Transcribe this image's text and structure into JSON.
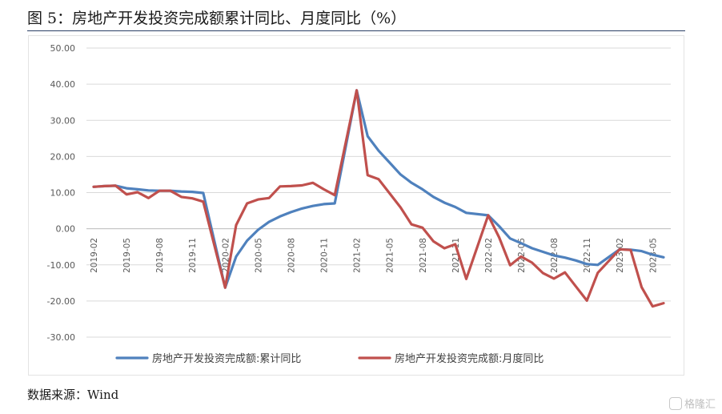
{
  "figure": {
    "title": "图 5：房地产开发投资完成额累计同比、月度同比（%）",
    "source": "数据来源：Wind"
  },
  "watermark": {
    "text": "格隆汇",
    "icon": "gelonghui-logo-icon"
  },
  "chart_data": {
    "type": "line",
    "x": [
      "2019-02",
      "2019-03",
      "2019-04",
      "2019-05",
      "2019-06",
      "2019-07",
      "2019-08",
      "2019-09",
      "2019-10",
      "2019-11",
      "2019-12",
      "2020-01",
      "2020-02",
      "2020-03",
      "2020-04",
      "2020-05",
      "2020-06",
      "2020-07",
      "2020-08",
      "2020-09",
      "2020-10",
      "2020-11",
      "2020-12",
      "2021-01",
      "2021-02",
      "2021-03",
      "2021-04",
      "2021-05",
      "2021-06",
      "2021-07",
      "2021-08",
      "2021-09",
      "2021-10",
      "2021-11",
      "2021-12",
      "2022-01",
      "2022-02",
      "2022-03",
      "2022-04",
      "2022-05",
      "2022-06",
      "2022-07",
      "2022-08",
      "2022-09",
      "2022-10",
      "2022-11",
      "2022-12",
      "2023-01",
      "2023-02",
      "2023-03",
      "2023-04",
      "2023-05",
      "2023-06"
    ],
    "tick_labels": [
      "2019-02",
      "2019-05",
      "2019-08",
      "2019-11",
      "2020-02",
      "2020-05",
      "2020-08",
      "2020-11",
      "2021-02",
      "2021-05",
      "2021-08",
      "2021-11",
      "2022-02",
      "2022-05",
      "2022-08",
      "2022-11",
      "2023-02",
      "2023-05"
    ],
    "ylim": [
      -30,
      50
    ],
    "yticks": [
      "50.00",
      "40.00",
      "30.00",
      "20.00",
      "10.00",
      "0.00",
      "-10.00",
      "-20.00",
      "-30.00"
    ],
    "grid": true,
    "legend_position": "bottom",
    "series": [
      {
        "name": "房地产开发投资完成额:累计同比",
        "color": "#4f81bd",
        "values": [
          11.6,
          11.8,
          11.9,
          11.2,
          10.9,
          10.6,
          10.5,
          10.5,
          10.3,
          10.2,
          9.9,
          null,
          -16.3,
          -7.7,
          -3.3,
          -0.3,
          1.9,
          3.4,
          4.6,
          5.6,
          6.3,
          6.8,
          7.0,
          null,
          38.3,
          25.6,
          21.6,
          18.3,
          15.0,
          12.7,
          10.9,
          8.8,
          7.2,
          6.0,
          4.4,
          null,
          3.7,
          0.7,
          -2.7,
          -4.0,
          -5.4,
          -6.4,
          -7.4,
          -8.0,
          -8.8,
          -9.8,
          -10.0,
          null,
          -5.7,
          -5.8,
          -6.2,
          -7.2,
          -7.9
        ]
      },
      {
        "name": "房地产开发投资完成额:月度同比",
        "color": "#c0504d",
        "values": [
          11.6,
          11.8,
          11.9,
          9.5,
          10.1,
          8.5,
          10.5,
          10.5,
          8.8,
          8.4,
          7.5,
          null,
          -16.3,
          1.0,
          7.0,
          8.1,
          8.5,
          11.7,
          11.8,
          12.0,
          12.7,
          10.9,
          9.3,
          null,
          38.3,
          14.8,
          13.7,
          9.8,
          5.9,
          1.2,
          0.3,
          -3.5,
          -5.4,
          -4.3,
          -13.9,
          null,
          3.7,
          -2.4,
          -10.1,
          -7.7,
          -9.4,
          -12.3,
          -13.8,
          -12.1,
          -16.0,
          -19.9,
          -12.2,
          null,
          -5.7,
          -5.9,
          -16.2,
          -21.5,
          -20.6
        ]
      }
    ]
  }
}
